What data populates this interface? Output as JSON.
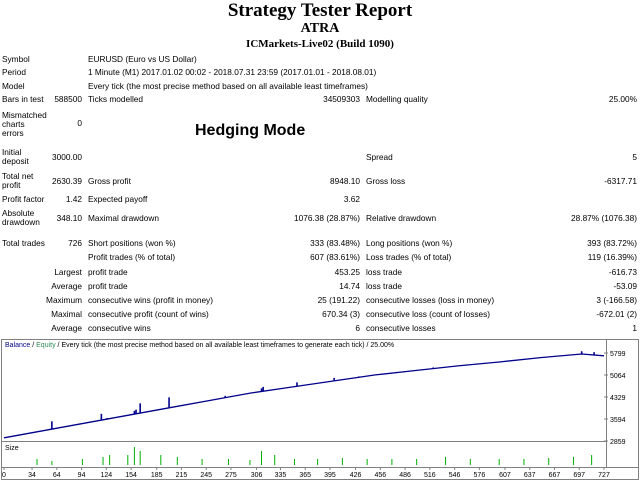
{
  "header": {
    "title": "Strategy Tester Report",
    "expert": "ATRA",
    "server": "ICMarkets-Live02 (Build 1090)"
  },
  "info": {
    "symbol_label": "Symbol",
    "symbol_value": "EURUSD (Euro vs US Dollar)",
    "period_label": "Period",
    "period_value": "1 Minute (M1) 2017.01.02 00:02 - 2018.07.31 23:59 (2017.01.01 - 2018.08.01)",
    "model_label": "Model",
    "model_value": "Every tick (the most precise method based on all available least timeframes)",
    "bars_label": "Bars in test",
    "bars_value": "588500",
    "ticks_label": "Ticks modelled",
    "ticks_value": "34509303",
    "quality_label": "Modelling quality",
    "quality_value": "25.00%",
    "mismatch_label_1": "Mismatched",
    "mismatch_label_2": "charts",
    "mismatch_label_3": "errors",
    "mismatch_value": "0",
    "hedging_text": "Hedging Mode"
  },
  "results": {
    "initial_label_1": "Initial",
    "initial_label_2": "deposit",
    "initial_value": "3000.00",
    "spread_label": "Spread",
    "spread_value": "5",
    "net_label_1": "Total net",
    "net_label_2": "profit",
    "net_value": "2630.39",
    "gross_profit_label": "Gross profit",
    "gross_profit_value": "8948.10",
    "gross_loss_label": "Gross loss",
    "gross_loss_value": "-6317.71",
    "pf_label": "Profit factor",
    "pf_value": "1.42",
    "ep_label": "Expected payoff",
    "ep_value": "3.62",
    "abs_dd_label_1": "Absolute",
    "abs_dd_label_2": "drawdown",
    "abs_dd_value": "348.10",
    "max_dd_label": "Maximal drawdown",
    "max_dd_value": "1076.38 (28.87%)",
    "rel_dd_label": "Relative drawdown",
    "rel_dd_value": "28.87% (1076.38)"
  },
  "trades": {
    "total_label": "Total trades",
    "total_value": "726",
    "short_label": "Short positions (won %)",
    "short_value": "333 (83.48%)",
    "long_label": "Long positions (won %)",
    "long_value": "393 (83.72%)",
    "profit_trades_label": "Profit trades (% of total)",
    "profit_trades_value": "607 (83.61%)",
    "loss_trades_label": "Loss trades (% of total)",
    "loss_trades_value": "119 (16.39%)",
    "largest_label": "Largest",
    "largest_profit_label": "profit trade",
    "largest_profit_value": "453.25",
    "largest_loss_label": "loss trade",
    "largest_loss_value": "-616.73",
    "average_label": "Average",
    "average_profit_label": "profit trade",
    "average_profit_value": "14.74",
    "average_loss_label": "loss trade",
    "average_loss_value": "-53.09",
    "maximum_label": "Maximum",
    "max_cw_label": "consecutive wins (profit in money)",
    "max_cw_value": "25 (191.22)",
    "max_cl_label": "consecutive losses (loss in money)",
    "max_cl_value": "3 (-166.58)",
    "maximal_label": "Maximal",
    "mxl_cp_label": "consecutive profit (count of wins)",
    "mxl_cp_value": "670.34 (3)",
    "mxl_cl_label": "consecutive loss (count of losses)",
    "mxl_cl_value": "-672.01 (2)",
    "avg_label": "Average",
    "avg_cw_label": "consecutive wins",
    "avg_cw_value": "6",
    "avg_cl_label": "consecutive losses",
    "avg_cl_value": "1"
  },
  "chart_data": {
    "type": "line",
    "legend_balance": "Balance",
    "legend_sep": " / ",
    "legend_equity": "Equity",
    "legend_rest": " / Every tick (the most precise method based on all available least timeframes to generate each tick) / 25.00%",
    "size_label": "Size",
    "y_ticks": [
      "5799",
      "5064",
      "4329",
      "3594",
      "2859"
    ],
    "x_ticks": [
      "0",
      "34",
      "64",
      "94",
      "124",
      "154",
      "185",
      "215",
      "245",
      "275",
      "306",
      "335",
      "365",
      "395",
      "426",
      "456",
      "486",
      "516",
      "546",
      "576",
      "607",
      "637",
      "667",
      "697",
      "727"
    ],
    "ylim": [
      2859,
      5799
    ],
    "xlim": [
      0,
      727
    ],
    "colors": {
      "balance": "#00008b",
      "equity": "#2e8b57",
      "volume": "#00b000"
    },
    "balance": [
      [
        0,
        2900
      ],
      [
        30,
        3050
      ],
      [
        60,
        3200
      ],
      [
        100,
        3400
      ],
      [
        150,
        3650
      ],
      [
        200,
        3900
      ],
      [
        250,
        4150
      ],
      [
        300,
        4400
      ],
      [
        350,
        4600
      ],
      [
        400,
        4800
      ],
      [
        450,
        5000
      ],
      [
        500,
        5150
      ],
      [
        550,
        5300
      ],
      [
        600,
        5430
      ],
      [
        650,
        5580
      ],
      [
        700,
        5700
      ],
      [
        727,
        5640
      ]
    ],
    "equity_spikes": [
      [
        58,
        3450
      ],
      [
        118,
        3700
      ],
      [
        125,
        3560
      ],
      [
        158,
        3800
      ],
      [
        160,
        3840
      ],
      [
        165,
        4050
      ],
      [
        200,
        4250
      ],
      [
        210,
        3950
      ],
      [
        268,
        4300
      ],
      [
        312,
        4550
      ],
      [
        314,
        4600
      ],
      [
        355,
        4750
      ],
      [
        400,
        4900
      ],
      [
        430,
        4950
      ],
      [
        475,
        5100
      ],
      [
        520,
        5250
      ],
      [
        560,
        5350
      ],
      [
        620,
        5480
      ],
      [
        680,
        5650
      ],
      [
        700,
        5790
      ],
      [
        715,
        5760
      ]
    ],
    "volume_bars": [
      [
        40,
        0.3
      ],
      [
        58,
        0.2
      ],
      [
        95,
        0.3
      ],
      [
        120,
        0.4
      ],
      [
        128,
        0.5
      ],
      [
        150,
        0.5
      ],
      [
        158,
        0.9
      ],
      [
        165,
        0.7
      ],
      [
        190,
        0.5
      ],
      [
        210,
        0.4
      ],
      [
        240,
        0.3
      ],
      [
        272,
        0.3
      ],
      [
        298,
        0.25
      ],
      [
        312,
        0.7
      ],
      [
        328,
        0.5
      ],
      [
        352,
        0.3
      ],
      [
        380,
        0.3
      ],
      [
        410,
        0.35
      ],
      [
        440,
        0.3
      ],
      [
        470,
        0.3
      ],
      [
        500,
        0.3
      ],
      [
        535,
        0.4
      ],
      [
        565,
        0.3
      ],
      [
        600,
        0.3
      ],
      [
        630,
        0.3
      ],
      [
        660,
        0.35
      ],
      [
        690,
        0.4
      ],
      [
        712,
        0.5
      ]
    ]
  }
}
